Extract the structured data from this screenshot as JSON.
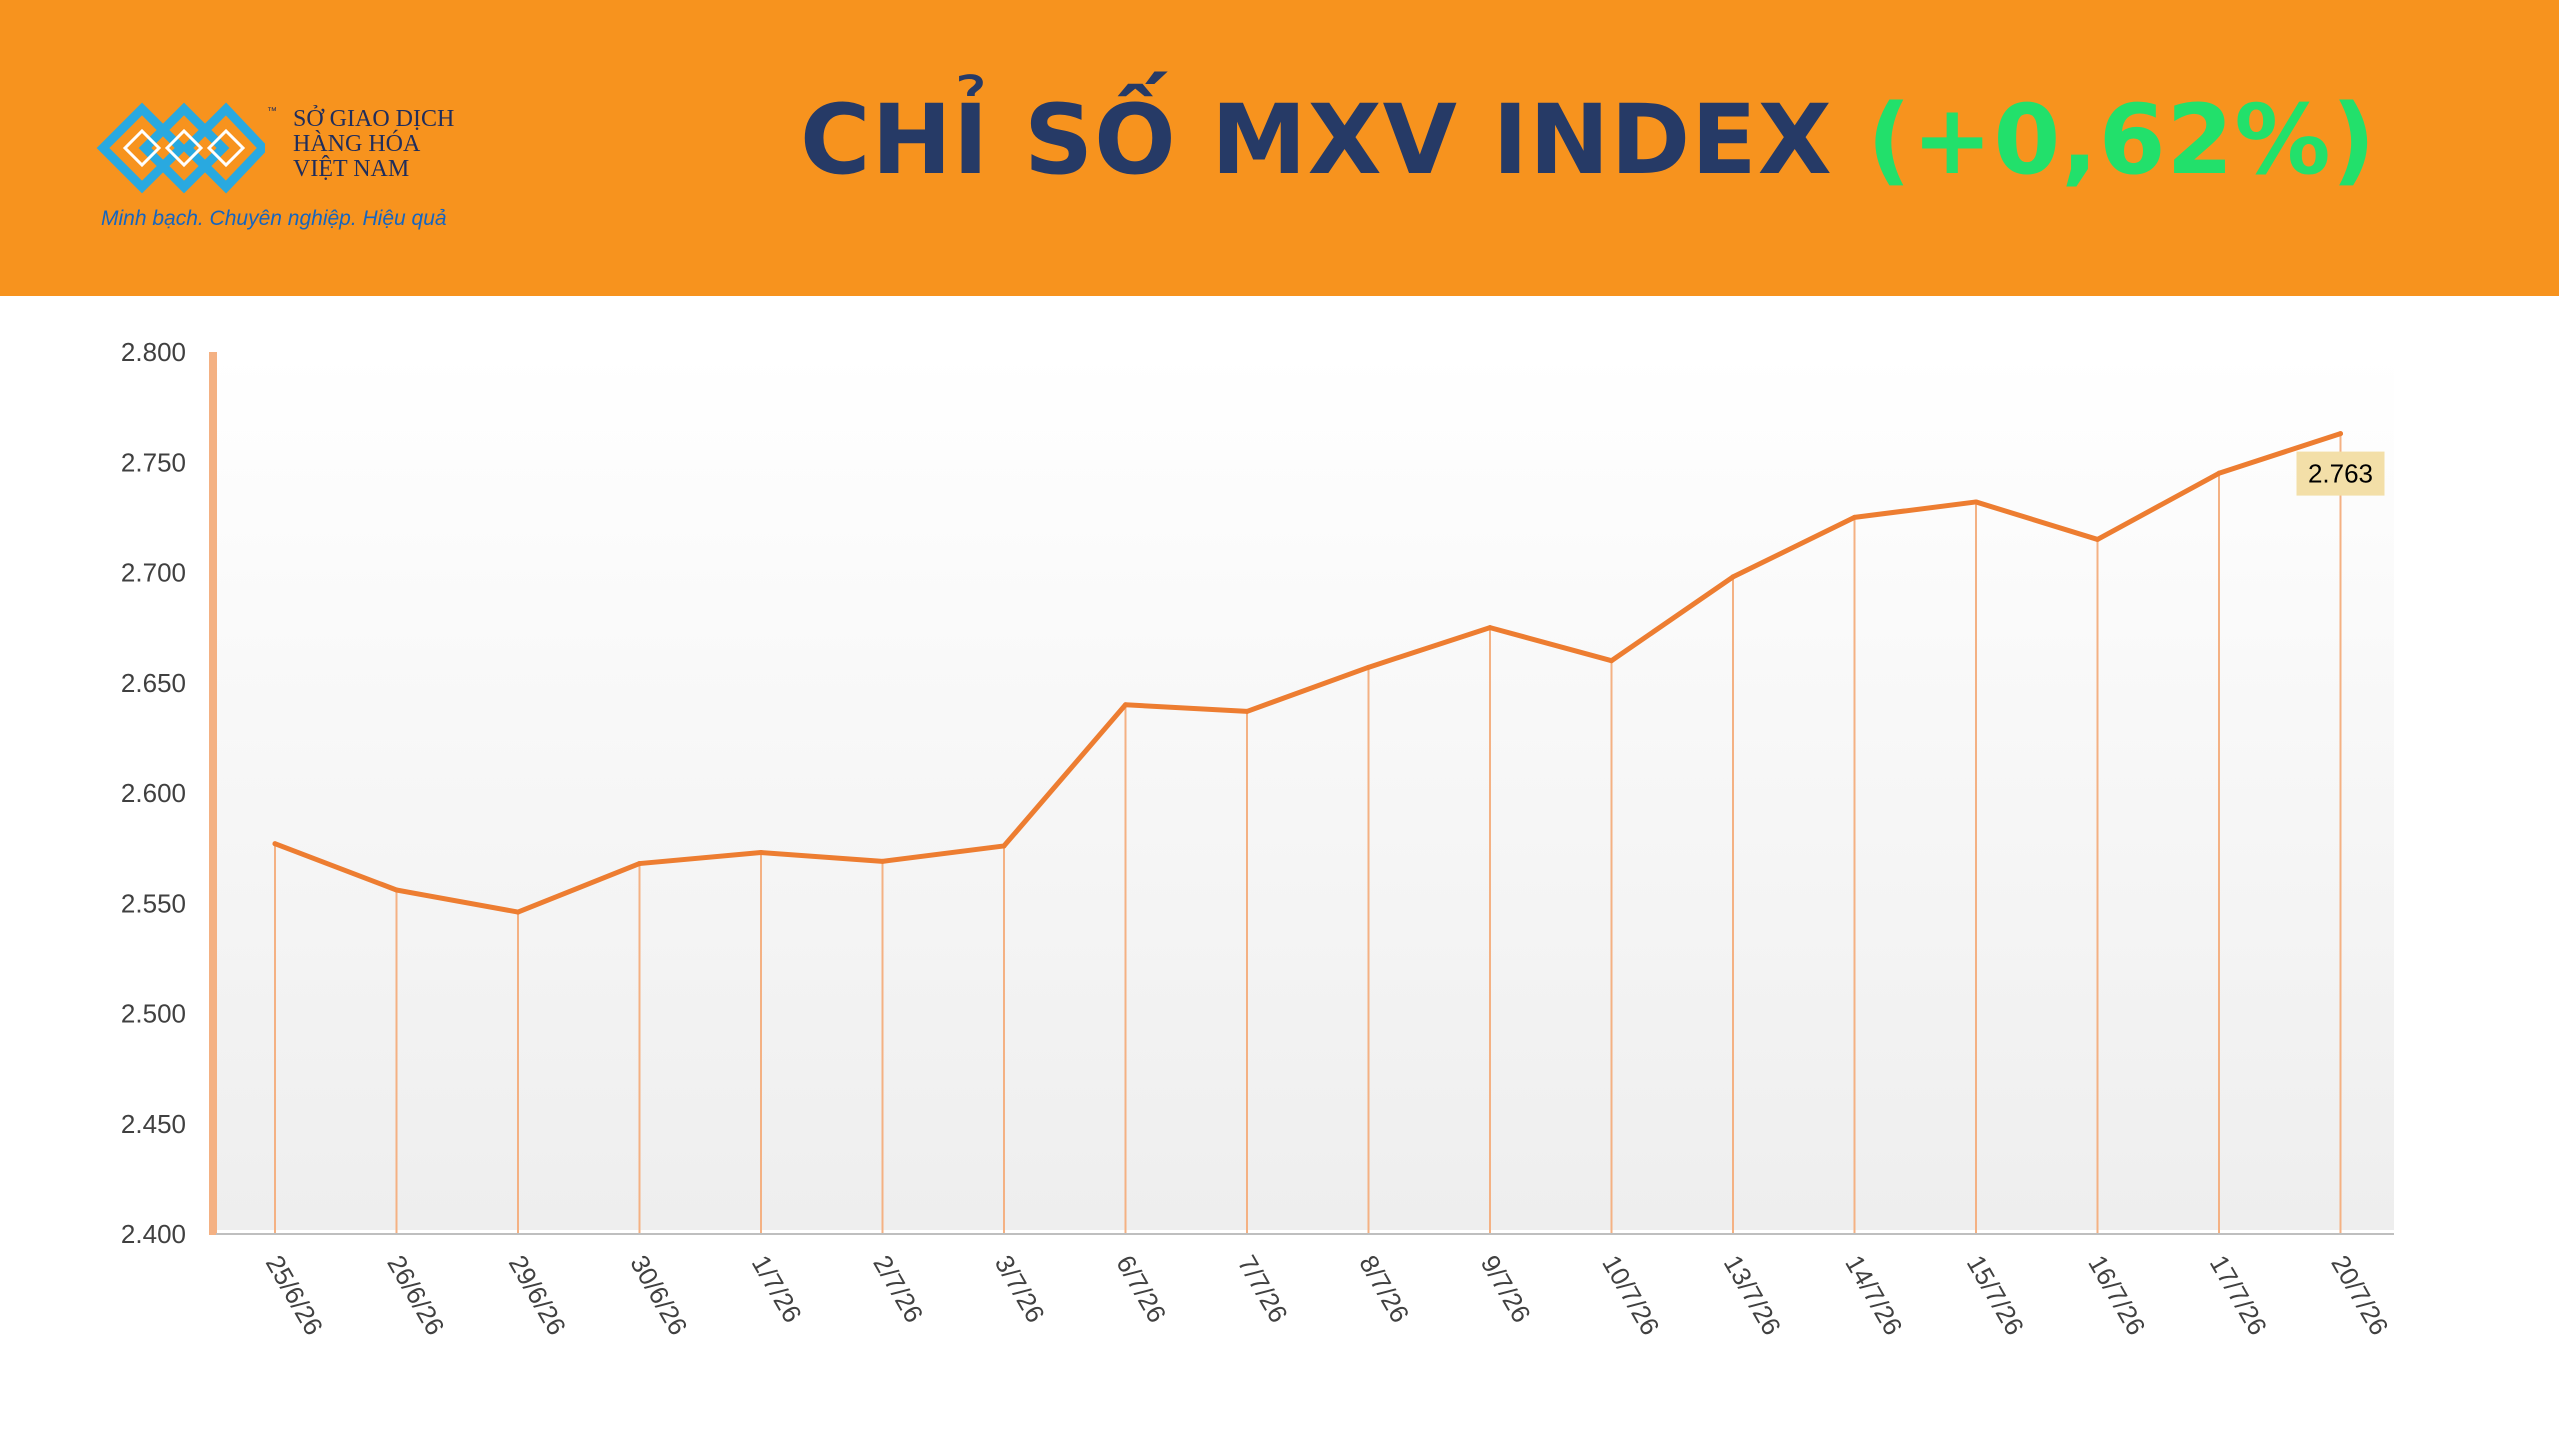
{
  "header": {
    "org_name_lines": [
      "SỞ GIAO DỊCH",
      "HÀNG HÓA",
      "VIỆT NAM"
    ],
    "trademark": "™",
    "tagline": "Minh bạch. Chuyên nghiệp. Hiệu quả",
    "title_main": "CHỈ SỐ MXV INDEX ",
    "title_change": "(+0,62%)"
  },
  "colors": {
    "header_bg": "#f7931e",
    "title": "#263a66",
    "change_positive": "#22e06b",
    "line": "#ed7d31",
    "drop_line": "#f4b183",
    "label_bg": "#f3dfa8",
    "logo": "#29a9e0"
  },
  "chart_data": {
    "type": "line",
    "categories": [
      "25/6/26",
      "26/6/26",
      "29/6/26",
      "30/6/26",
      "1/7/26",
      "2/7/26",
      "3/7/26",
      "6/7/26",
      "7/7/26",
      "8/7/26",
      "9/7/26",
      "10/7/26",
      "13/7/26",
      "14/7/26",
      "15/7/26",
      "16/7/26",
      "17/7/26",
      "20/7/26"
    ],
    "values": [
      2577,
      2556,
      2546,
      2568,
      2573,
      2569,
      2576,
      2640,
      2637,
      2657,
      2675,
      2660,
      2698,
      2725,
      2732,
      2715,
      2745,
      2763
    ],
    "ylim": [
      2400,
      2800
    ],
    "yticks": [
      2400,
      2450,
      2500,
      2550,
      2600,
      2650,
      2700,
      2750,
      2800
    ],
    "ytick_labels": [
      "2.400",
      "2.450",
      "2.500",
      "2.550",
      "2.600",
      "2.650",
      "2.700",
      "2.750",
      "2.800"
    ],
    "last_value_label": "2.763",
    "drop_lines": true,
    "legend": "none"
  }
}
